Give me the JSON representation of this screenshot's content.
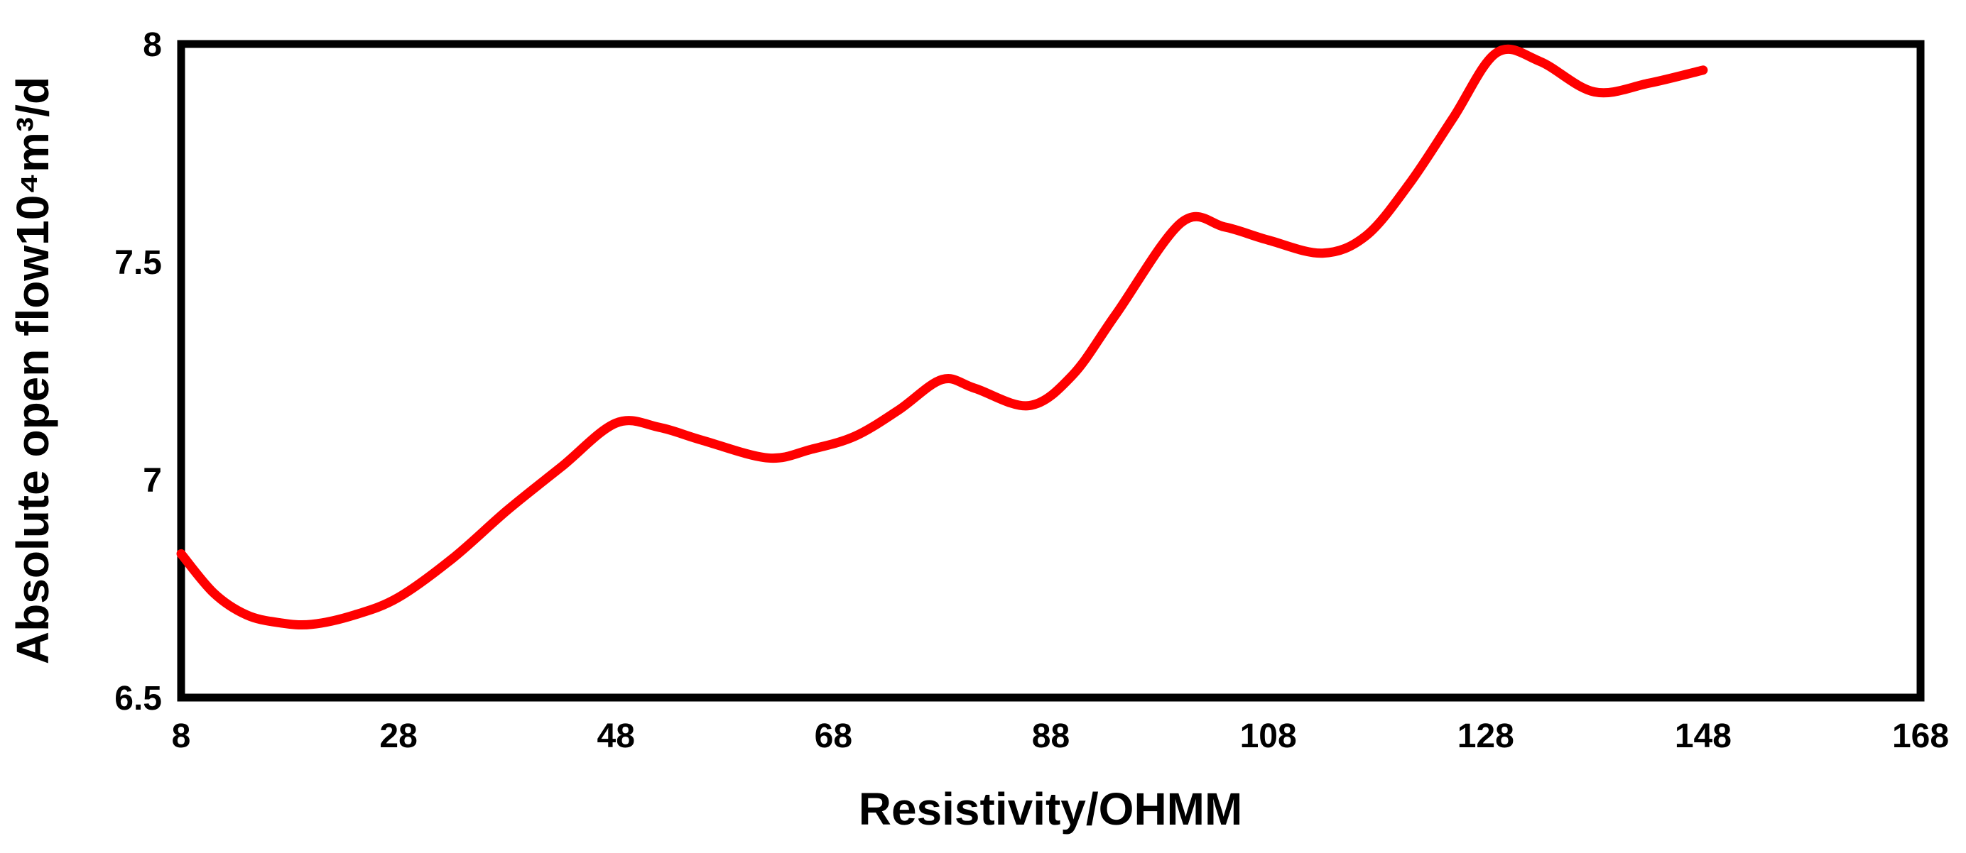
{
  "chart_data": {
    "type": "line",
    "title": "",
    "xlabel": "Resistivity/OHMM",
    "ylabel": "Absolute open flow10⁴m³/d",
    "xlim": [
      8,
      168
    ],
    "ylim": [
      6.5,
      8
    ],
    "x_ticks": [
      8,
      28,
      48,
      68,
      88,
      108,
      128,
      148,
      168
    ],
    "y_ticks": [
      6.5,
      7,
      7.5,
      8
    ],
    "grid": false,
    "legend_position": "none",
    "background_color": "#FFFFFF",
    "axis_color": "#000000",
    "series": [
      {
        "name": "Absolute open flow",
        "color": "#FF0000",
        "line_width": 13,
        "smooth": true,
        "points": [
          [
            8,
            6.83
          ],
          [
            11,
            6.74
          ],
          [
            14,
            6.69
          ],
          [
            17,
            6.672
          ],
          [
            20,
            6.668
          ],
          [
            24,
            6.69
          ],
          [
            28,
            6.73
          ],
          [
            33,
            6.82
          ],
          [
            38,
            6.93
          ],
          [
            43,
            7.03
          ],
          [
            48,
            7.13
          ],
          [
            52,
            7.12
          ],
          [
            56,
            7.09
          ],
          [
            62,
            7.05
          ],
          [
            66,
            7.07
          ],
          [
            70,
            7.1
          ],
          [
            74,
            7.16
          ],
          [
            78,
            7.23
          ],
          [
            81,
            7.21
          ],
          [
            86,
            7.17
          ],
          [
            90,
            7.24
          ],
          [
            94,
            7.38
          ],
          [
            100,
            7.59
          ],
          [
            104,
            7.58
          ],
          [
            108,
            7.55
          ],
          [
            113,
            7.52
          ],
          [
            117,
            7.56
          ],
          [
            121,
            7.68
          ],
          [
            125,
            7.83
          ],
          [
            129,
            7.98
          ],
          [
            133,
            7.96
          ],
          [
            138,
            7.89
          ],
          [
            143,
            7.91
          ],
          [
            148,
            7.94
          ]
        ]
      }
    ]
  }
}
